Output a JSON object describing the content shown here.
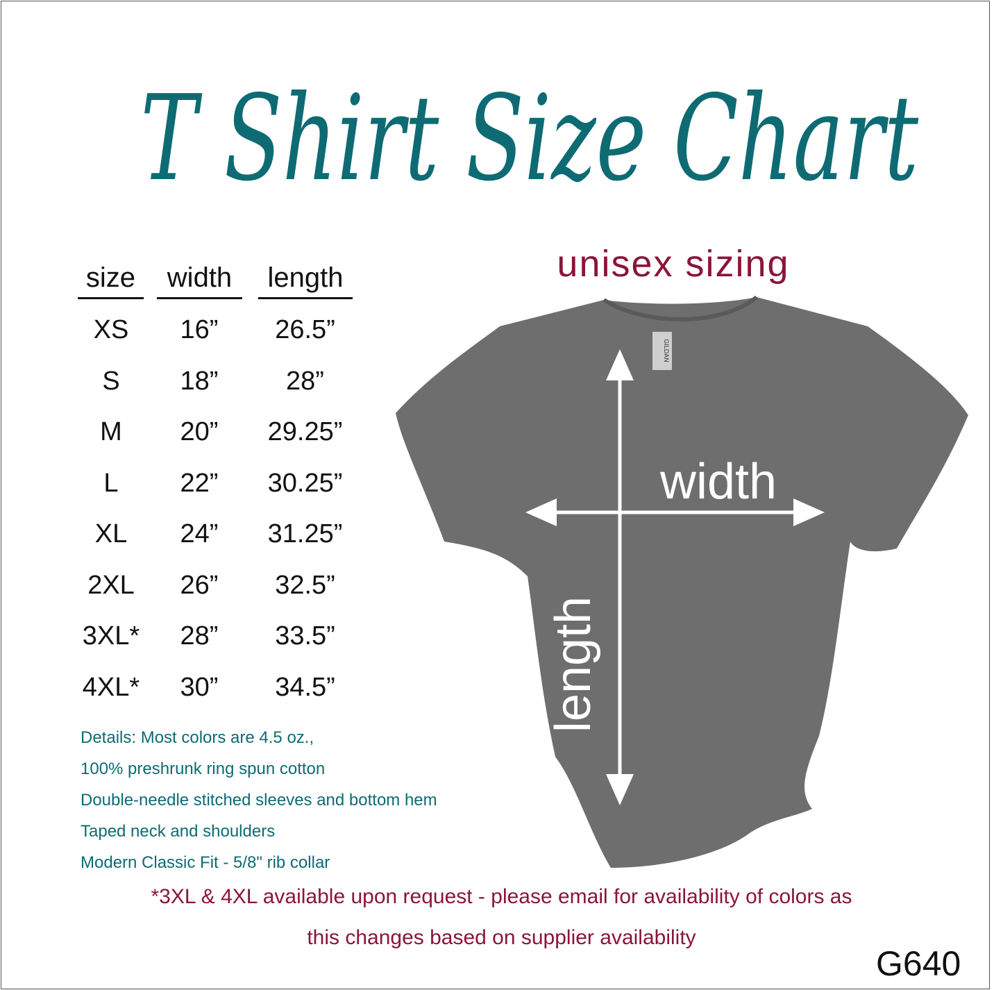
{
  "title": "T Shirt Size Chart",
  "subtitle": "unisex sizing",
  "table": {
    "headers": [
      "size",
      "width",
      "length"
    ],
    "rows": [
      {
        "size": "XS",
        "width": "16”",
        "length": "26.5”"
      },
      {
        "size": "S",
        "width": "18”",
        "length": "28”"
      },
      {
        "size": "M",
        "width": "20”",
        "length": "29.25”"
      },
      {
        "size": "L",
        "width": "22”",
        "length": "30.25”"
      },
      {
        "size": "XL",
        "width": "24”",
        "length": "31.25”"
      },
      {
        "size": "2XL",
        "width": "26”",
        "length": "32.5”"
      },
      {
        "size": "3XL*",
        "width": "28”",
        "length": "33.5”"
      },
      {
        "size": "4XL*",
        "width": "30”",
        "length": "34.5”"
      }
    ]
  },
  "diagram": {
    "width_label": "width",
    "length_label": "length",
    "tag_brand": "GILDAN",
    "shirt_color": "#6e6e6e"
  },
  "details": [
    "Details: Most colors are 4.5 oz.,",
    "100% preshrunk ring spun cotton",
    "Double-needle stitched sleeves and bottom hem",
    "Taped neck and shoulders",
    "Modern Classic Fit - 5/8\" rib collar"
  ],
  "footnote": [
    "*3XL & 4XL available upon request - please email for availability of colors as",
    "this changes based on supplier availability"
  ],
  "product_code": "G640",
  "colors": {
    "teal": "#0e6b73",
    "maroon": "#8a1538"
  }
}
